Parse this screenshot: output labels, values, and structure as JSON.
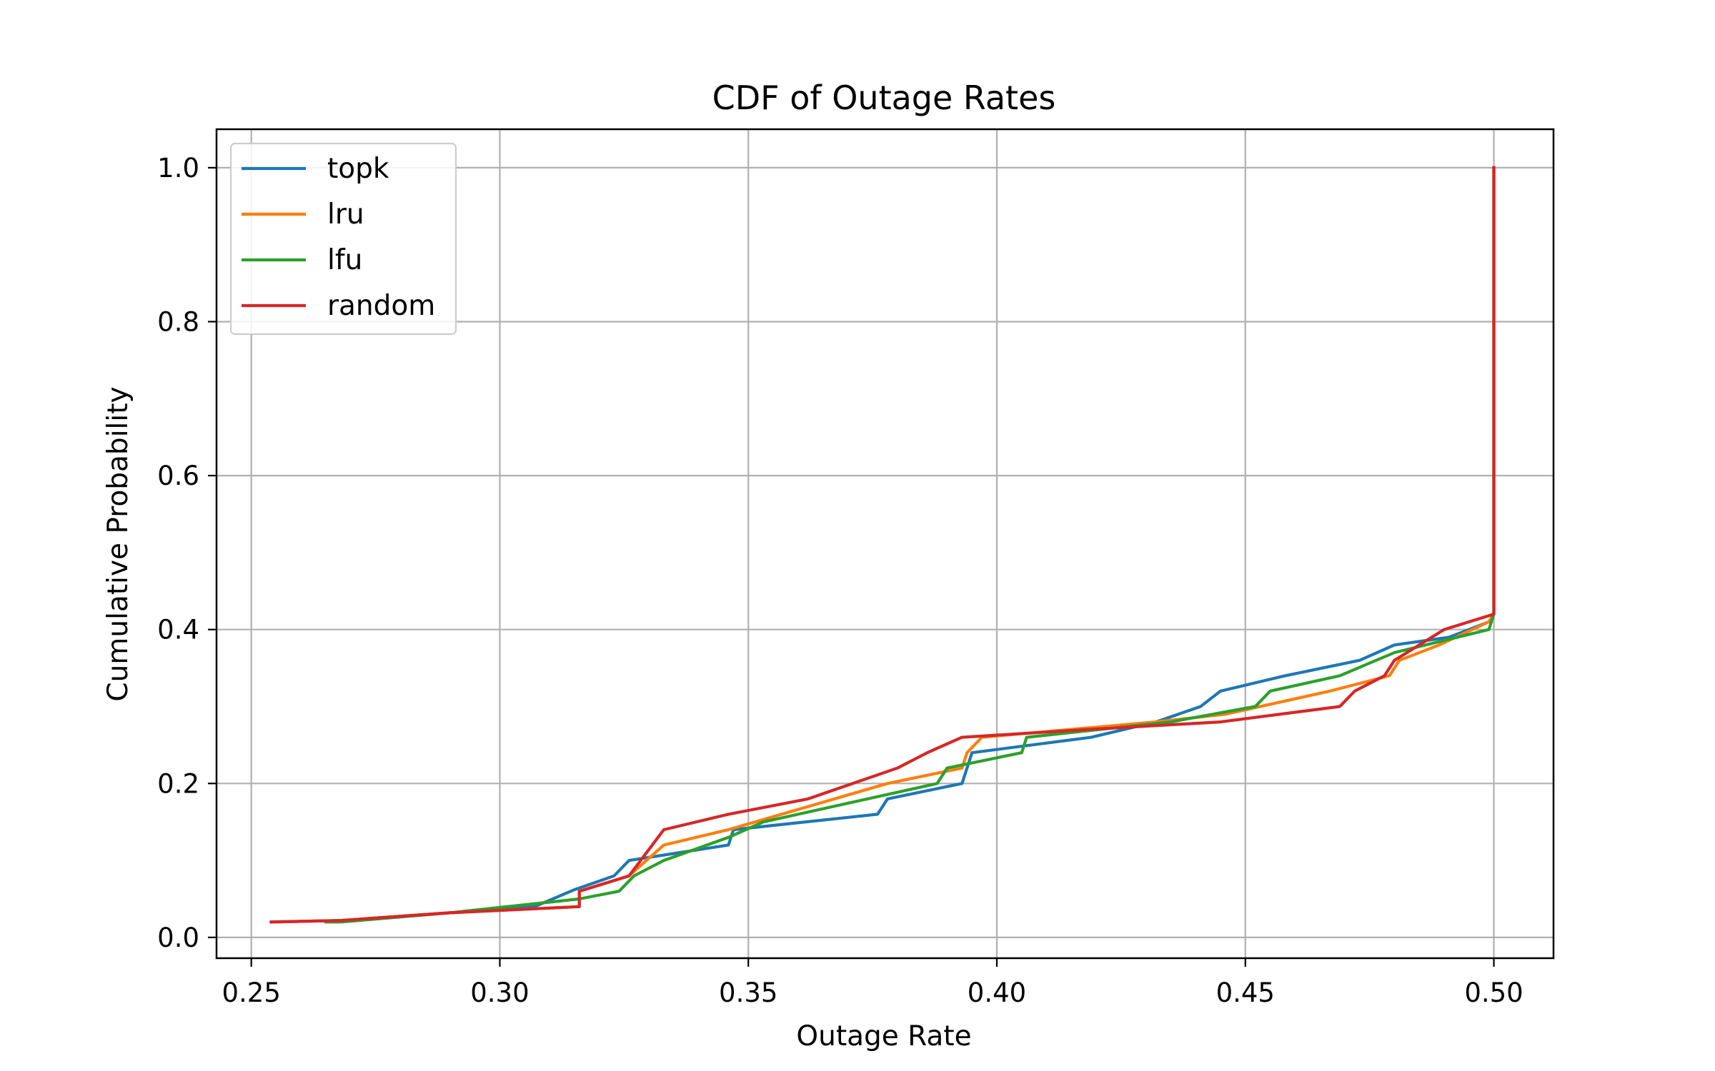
{
  "chart_data": {
    "type": "line",
    "title": "CDF of Outage Rates",
    "xlabel": "Outage Rate",
    "ylabel": "Cumulative Probability",
    "xlim": [
      0.243,
      0.512
    ],
    "ylim": [
      -0.027,
      1.05
    ],
    "xticks": [
      0.25,
      0.3,
      0.35,
      0.4,
      0.45,
      0.5
    ],
    "xtick_labels": [
      "0.25",
      "0.30",
      "0.35",
      "0.40",
      "0.45",
      "0.50"
    ],
    "yticks": [
      0.0,
      0.2,
      0.4,
      0.6,
      0.8,
      1.0
    ],
    "ytick_labels": [
      "0.0",
      "0.2",
      "0.4",
      "0.6",
      "0.8",
      "1.0"
    ],
    "grid": true,
    "legend_position": "upper-left",
    "series": [
      {
        "name": "topk",
        "color": "#1f77b4",
        "points": [
          [
            0.254,
            0.02
          ],
          [
            0.268,
            0.022
          ],
          [
            0.29,
            0.032
          ],
          [
            0.307,
            0.04
          ],
          [
            0.315,
            0.062
          ],
          [
            0.323,
            0.08
          ],
          [
            0.326,
            0.1
          ],
          [
            0.346,
            0.12
          ],
          [
            0.347,
            0.14
          ],
          [
            0.376,
            0.16
          ],
          [
            0.378,
            0.18
          ],
          [
            0.393,
            0.2
          ],
          [
            0.395,
            0.24
          ],
          [
            0.419,
            0.26
          ],
          [
            0.432,
            0.28
          ],
          [
            0.441,
            0.3
          ],
          [
            0.445,
            0.32
          ],
          [
            0.458,
            0.34
          ],
          [
            0.473,
            0.36
          ],
          [
            0.48,
            0.38
          ],
          [
            0.491,
            0.39
          ],
          [
            0.499,
            0.41
          ],
          [
            0.5,
            0.42
          ],
          [
            0.5,
            1.0
          ]
        ]
      },
      {
        "name": "lru",
        "color": "#ff7f0e",
        "points": [
          [
            0.254,
            0.02
          ],
          [
            0.268,
            0.022
          ],
          [
            0.29,
            0.032
          ],
          [
            0.316,
            0.04
          ],
          [
            0.316,
            0.06
          ],
          [
            0.326,
            0.08
          ],
          [
            0.333,
            0.12
          ],
          [
            0.346,
            0.14
          ],
          [
            0.378,
            0.2
          ],
          [
            0.393,
            0.22
          ],
          [
            0.394,
            0.24
          ],
          [
            0.397,
            0.26
          ],
          [
            0.432,
            0.28
          ],
          [
            0.446,
            0.29
          ],
          [
            0.467,
            0.32
          ],
          [
            0.479,
            0.34
          ],
          [
            0.481,
            0.36
          ],
          [
            0.489,
            0.38
          ],
          [
            0.499,
            0.41
          ],
          [
            0.5,
            0.42
          ],
          [
            0.5,
            1.0
          ]
        ]
      },
      {
        "name": "lfu",
        "color": "#2ca02c",
        "points": [
          [
            0.265,
            0.02
          ],
          [
            0.268,
            0.02
          ],
          [
            0.29,
            0.032
          ],
          [
            0.316,
            0.05
          ],
          [
            0.324,
            0.06
          ],
          [
            0.327,
            0.08
          ],
          [
            0.333,
            0.1
          ],
          [
            0.346,
            0.13
          ],
          [
            0.353,
            0.15
          ],
          [
            0.388,
            0.2
          ],
          [
            0.39,
            0.22
          ],
          [
            0.405,
            0.24
          ],
          [
            0.406,
            0.26
          ],
          [
            0.435,
            0.28
          ],
          [
            0.452,
            0.3
          ],
          [
            0.455,
            0.32
          ],
          [
            0.469,
            0.34
          ],
          [
            0.48,
            0.37
          ],
          [
            0.499,
            0.4
          ],
          [
            0.5,
            0.42
          ],
          [
            0.5,
            1.0
          ]
        ]
      },
      {
        "name": "random",
        "color": "#d62728",
        "points": [
          [
            0.254,
            0.02
          ],
          [
            0.268,
            0.022
          ],
          [
            0.29,
            0.032
          ],
          [
            0.316,
            0.04
          ],
          [
            0.316,
            0.06
          ],
          [
            0.326,
            0.08
          ],
          [
            0.333,
            0.14
          ],
          [
            0.346,
            0.16
          ],
          [
            0.362,
            0.18
          ],
          [
            0.38,
            0.22
          ],
          [
            0.386,
            0.24
          ],
          [
            0.393,
            0.26
          ],
          [
            0.418,
            0.27
          ],
          [
            0.445,
            0.28
          ],
          [
            0.469,
            0.3
          ],
          [
            0.472,
            0.32
          ],
          [
            0.478,
            0.34
          ],
          [
            0.48,
            0.36
          ],
          [
            0.49,
            0.4
          ],
          [
            0.5,
            0.42
          ],
          [
            0.5,
            1.0
          ]
        ]
      }
    ]
  }
}
